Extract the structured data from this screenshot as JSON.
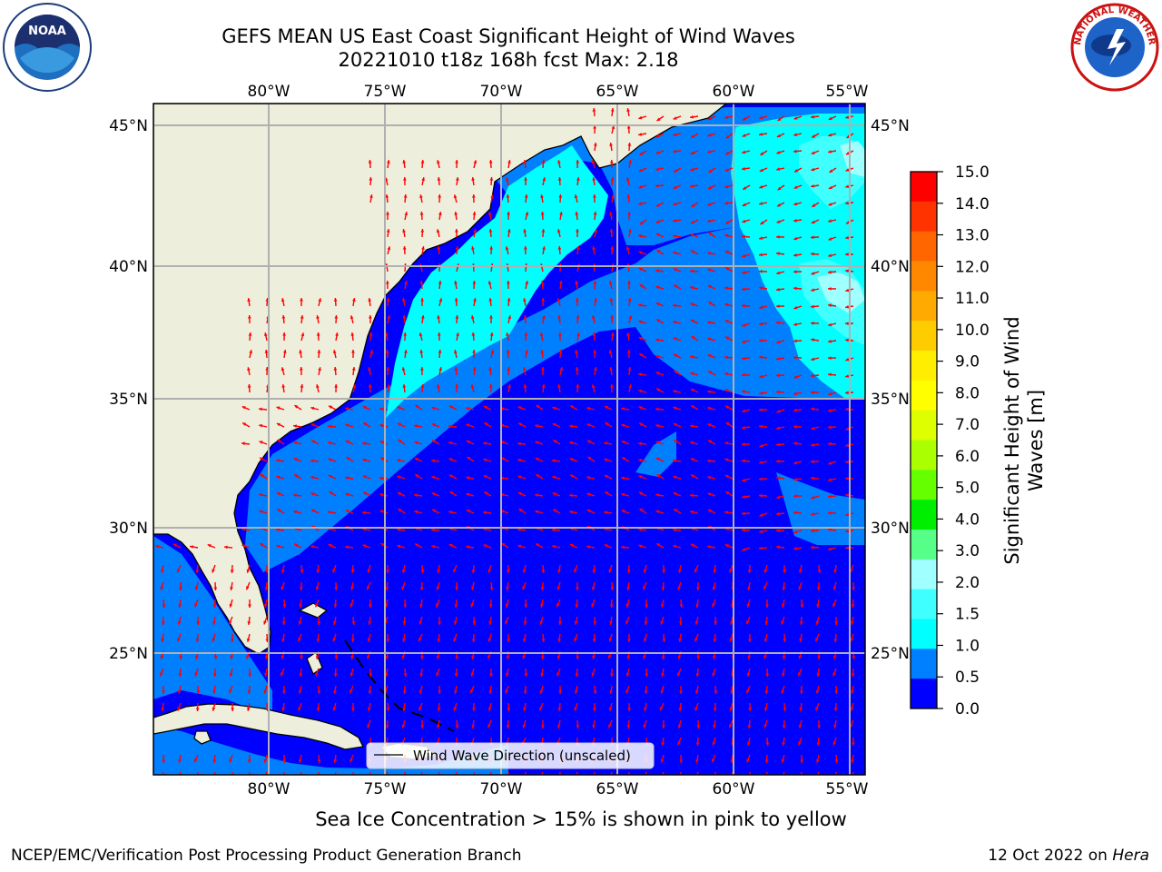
{
  "header": {
    "title_line1": "GEFS MEAN US East Coast Significant Height of Wind Waves",
    "title_line2": "20221010 t18z 168h fcst   Max: 2.18"
  },
  "logos": {
    "left_icon": "noaa-logo-icon",
    "right_icon": "nws-logo-icon",
    "nws_text": "NATIONAL WEATHER SERVICE"
  },
  "map": {
    "lon_labels": [
      "80°W",
      "75°W",
      "70°W",
      "65°W",
      "60°W",
      "55°W"
    ],
    "lat_labels": [
      "45°N",
      "40°N",
      "35°N",
      "30°N",
      "25°N"
    ],
    "legend_label": "Wind Wave Direction (unscaled)",
    "colors": {
      "land": "#eeeedc",
      "c0": "#0000ff",
      "c05": "#0080ff",
      "c10": "#00ffff",
      "c15": "#40ffff",
      "c20": "#a0ffff",
      "arrow": "#ff0000"
    }
  },
  "colorbar": {
    "label": "Significant Height of Wind Waves [m]",
    "label_line1": "Significant Height of Wind",
    "label_line2": "Waves [m]",
    "ticks": [
      "15.0",
      "14.0",
      "13.0",
      "12.0",
      "11.0",
      "10.0",
      "9.0",
      "8.0",
      "7.0",
      "6.0",
      "5.0",
      "4.0",
      "3.0",
      "2.0",
      "1.5",
      "1.0",
      "0.5",
      "0.0"
    ],
    "colors": [
      "#ff0000",
      "#ff3300",
      "#ff6600",
      "#ff8800",
      "#ffaa00",
      "#ffcc00",
      "#ffee00",
      "#ffff00",
      "#ddff00",
      "#aaff00",
      "#66ff00",
      "#00ee00",
      "#55ff88",
      "#a0ffff",
      "#40ffff",
      "#00ffff",
      "#0080ff",
      "#0000ff"
    ]
  },
  "caption": "Sea Ice Concentration > 15% is shown in pink to yellow",
  "footer": {
    "left": "NCEP/EMC/Verification Post Processing Product Generation Branch",
    "right_date": "12 Oct 2022 on ",
    "right_host": "Hera"
  }
}
